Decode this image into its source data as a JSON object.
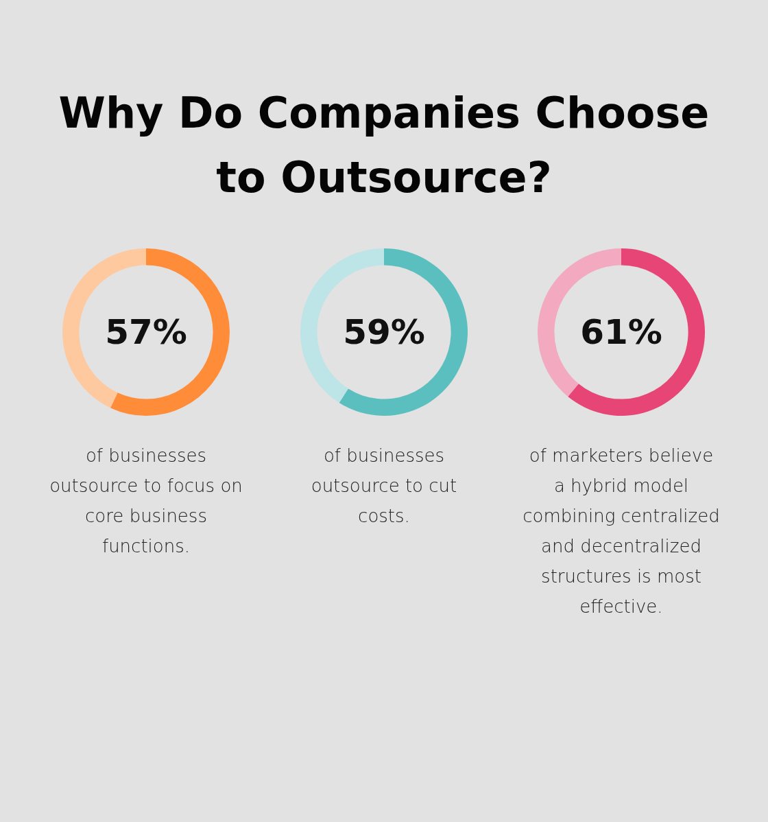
{
  "chart_data": [
    {
      "type": "donut",
      "title": "Why Do Companies Choose to Outsource?",
      "categories": [
        null,
        null
      ],
      "values": [
        57,
        43
      ],
      "colors": [
        "#ff8c38",
        "#ffc9a0"
      ],
      "annotations": [
        "57%",
        "of businesses outsource to focus on core business functions."
      ]
    },
    {
      "type": "donut",
      "categories": [
        null,
        null
      ],
      "values": [
        59,
        41
      ],
      "colors": [
        "#5bbfc0",
        "#bde4e6"
      ],
      "annotations": [
        "59%",
        "of businesses outsource to cut costs."
      ]
    },
    {
      "type": "donut",
      "categories": [
        null,
        null
      ],
      "values": [
        61,
        39
      ],
      "colors": [
        "#e64576",
        "#f3a9c0"
      ],
      "annotations": [
        "61%",
        "of marketers believe a hybrid model combining centralized and decentralized structures is most effective."
      ]
    }
  ]
}
